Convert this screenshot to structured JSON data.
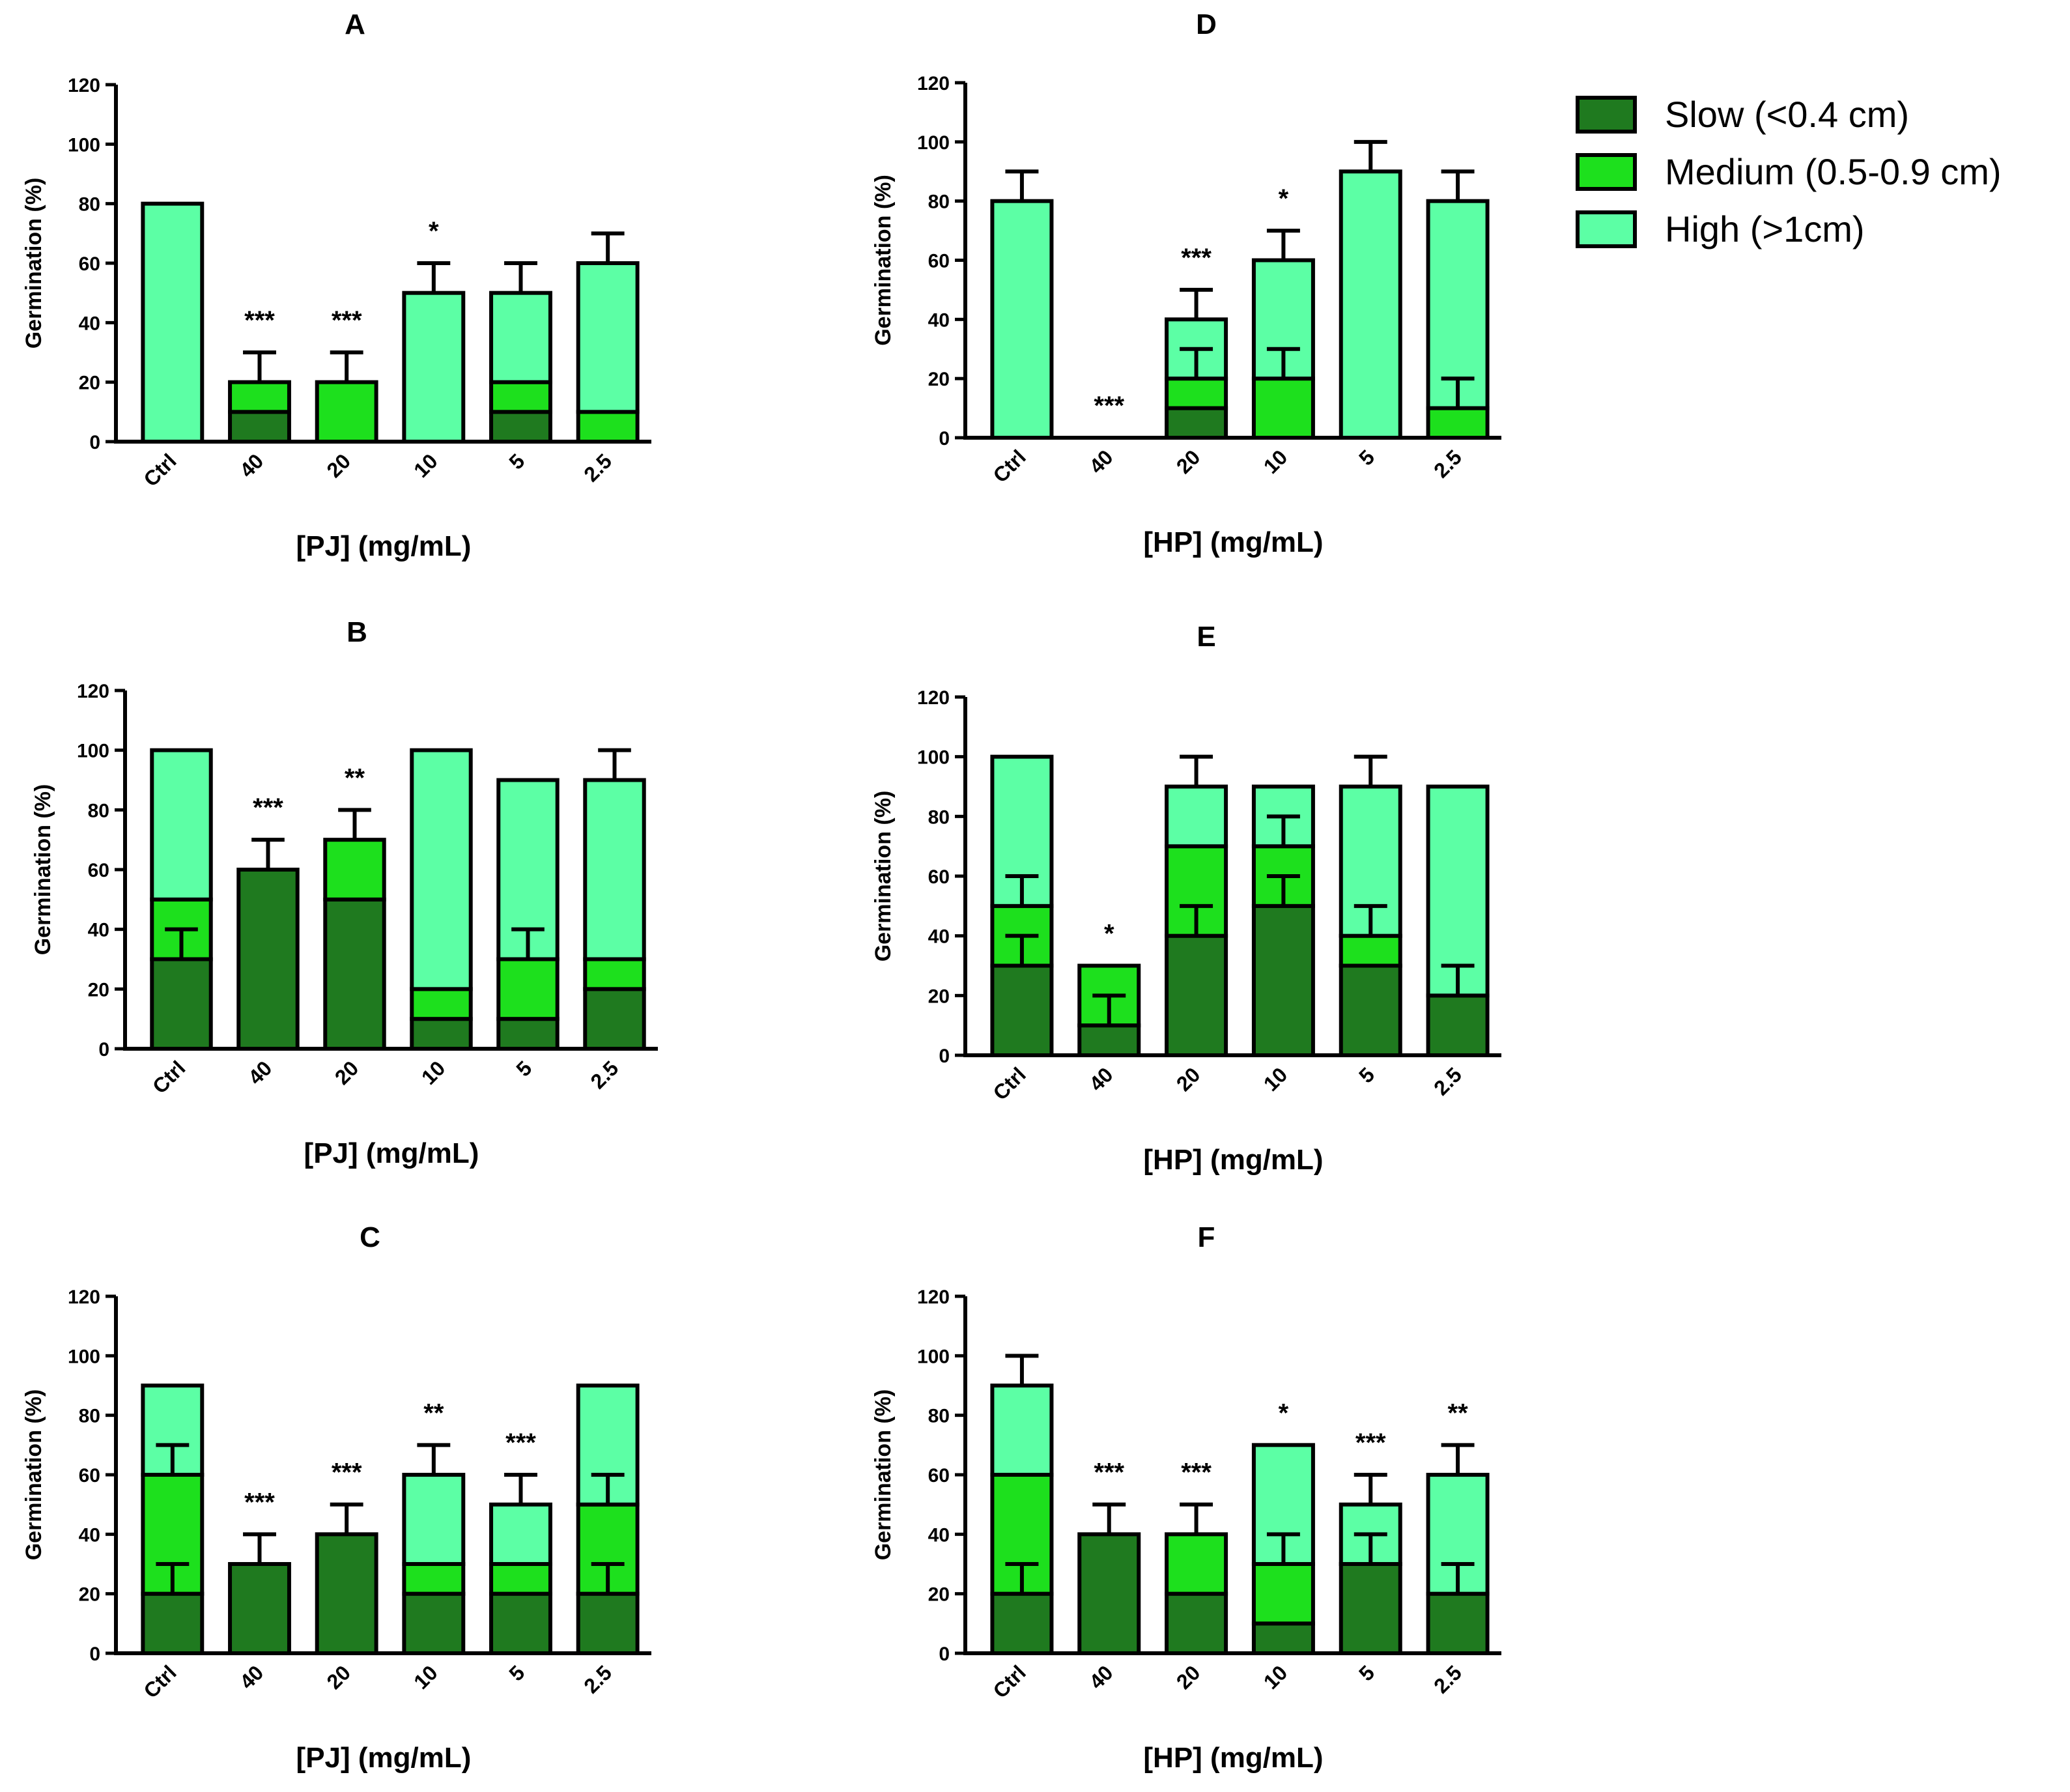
{
  "chart_data": [
    {
      "panel": "A",
      "type": "bar",
      "stacked": true,
      "xlabel": "[PJ] (mg/mL)",
      "ylabel": "Germination (%)",
      "ylim": [
        0,
        120
      ],
      "yticks": [
        "0",
        "20",
        "40",
        "60",
        "80",
        "100",
        "120"
      ],
      "categories": [
        "Ctrl",
        "40",
        "20",
        "10",
        "5",
        "2.5"
      ],
      "series": [
        {
          "name": "Slow (<0.4 cm)",
          "values": [
            0,
            10,
            0,
            0,
            10,
            0
          ],
          "errors": [
            0,
            0,
            0,
            0,
            0,
            0
          ]
        },
        {
          "name": "Medium (0.5-0.9 cm)",
          "values": [
            0,
            10,
            20,
            0,
            10,
            10
          ],
          "errors": [
            0,
            0,
            0,
            0,
            0,
            0
          ]
        },
        {
          "name": "High (>1cm)",
          "values": [
            80,
            0,
            0,
            50,
            30,
            50
          ],
          "errors": [
            0,
            0,
            0,
            0,
            0,
            0
          ]
        }
      ],
      "total_errors": [
        0,
        10,
        10,
        10,
        10,
        10
      ],
      "significance": [
        "",
        "***",
        "***",
        "*",
        "",
        ""
      ]
    },
    {
      "panel": "B",
      "type": "bar",
      "stacked": true,
      "xlabel": "[PJ] (mg/mL)",
      "ylabel": "Germination (%)",
      "ylim": [
        0,
        120
      ],
      "yticks": [
        "0",
        "20",
        "40",
        "60",
        "80",
        "100",
        "120"
      ],
      "categories": [
        "Ctrl",
        "40",
        "20",
        "10",
        "5",
        "2.5"
      ],
      "series": [
        {
          "name": "Slow (<0.4 cm)",
          "values": [
            30,
            60,
            50,
            10,
            10,
            20
          ],
          "errors": [
            10,
            0,
            0,
            0,
            0,
            0
          ]
        },
        {
          "name": "Medium (0.5-0.9 cm)",
          "values": [
            20,
            0,
            20,
            10,
            20,
            10
          ],
          "errors": [
            0,
            0,
            0,
            0,
            10,
            0
          ]
        },
        {
          "name": "High (>1cm)",
          "values": [
            50,
            0,
            0,
            80,
            60,
            60
          ],
          "errors": [
            0,
            0,
            0,
            0,
            0,
            0
          ]
        }
      ],
      "total_errors": [
        0,
        10,
        10,
        0,
        0,
        10
      ],
      "significance": [
        "",
        "***",
        "**",
        "",
        "",
        ""
      ]
    },
    {
      "panel": "C",
      "type": "bar",
      "stacked": true,
      "xlabel": "[PJ] (mg/mL)",
      "ylabel": "Germination (%)",
      "ylim": [
        0,
        120
      ],
      "yticks": [
        "0",
        "20",
        "40",
        "60",
        "80",
        "100",
        "120"
      ],
      "categories": [
        "Ctrl",
        "40",
        "20",
        "10",
        "5",
        "2.5"
      ],
      "series": [
        {
          "name": "Slow (<0.4 cm)",
          "values": [
            20,
            30,
            40,
            20,
            20,
            20
          ],
          "errors": [
            10,
            0,
            0,
            0,
            0,
            10
          ]
        },
        {
          "name": "Medium (0.5-0.9 cm)",
          "values": [
            40,
            0,
            0,
            10,
            10,
            30
          ],
          "errors": [
            10,
            0,
            0,
            0,
            0,
            10
          ]
        },
        {
          "name": "High (>1cm)",
          "values": [
            30,
            0,
            0,
            30,
            20,
            40
          ],
          "errors": [
            0,
            0,
            0,
            0,
            0,
            0
          ]
        }
      ],
      "total_errors": [
        0,
        10,
        10,
        10,
        10,
        0
      ],
      "significance": [
        "",
        "***",
        "***",
        "**",
        "***",
        ""
      ]
    },
    {
      "panel": "D",
      "type": "bar",
      "stacked": true,
      "xlabel": "[HP] (mg/mL)",
      "ylabel": "Germination (%)",
      "ylim": [
        0,
        120
      ],
      "yticks": [
        "0",
        "20",
        "40",
        "60",
        "80",
        "100",
        "120"
      ],
      "categories": [
        "Ctrl",
        "40",
        "20",
        "10",
        "5",
        "2.5"
      ],
      "series": [
        {
          "name": "Slow (<0.4 cm)",
          "values": [
            0,
            0,
            10,
            0,
            0,
            0
          ],
          "errors": [
            0,
            0,
            0,
            0,
            0,
            0
          ]
        },
        {
          "name": "Medium (0.5-0.9 cm)",
          "values": [
            0,
            0,
            10,
            20,
            0,
            10
          ],
          "errors": [
            0,
            0,
            10,
            10,
            0,
            10
          ]
        },
        {
          "name": "High (>1cm)",
          "values": [
            80,
            0,
            20,
            40,
            90,
            70
          ],
          "errors": [
            0,
            0,
            0,
            0,
            0,
            0
          ]
        }
      ],
      "total_errors": [
        10,
        0,
        10,
        10,
        10,
        10
      ],
      "significance": [
        "",
        "***",
        "***",
        "*",
        "",
        ""
      ]
    },
    {
      "panel": "E",
      "type": "bar",
      "stacked": true,
      "xlabel": "[HP] (mg/mL)",
      "ylabel": "Germination (%)",
      "ylim": [
        0,
        120
      ],
      "yticks": [
        "0",
        "20",
        "40",
        "60",
        "80",
        "100",
        "120"
      ],
      "categories": [
        "Ctrl",
        "40",
        "20",
        "10",
        "5",
        "2.5"
      ],
      "series": [
        {
          "name": "Slow (<0.4 cm)",
          "values": [
            30,
            10,
            40,
            50,
            30,
            20
          ],
          "errors": [
            10,
            10,
            10,
            10,
            0,
            10
          ]
        },
        {
          "name": "Medium (0.5-0.9 cm)",
          "values": [
            20,
            20,
            30,
            20,
            10,
            0
          ],
          "errors": [
            10,
            0,
            0,
            10,
            10,
            0
          ]
        },
        {
          "name": "High (>1cm)",
          "values": [
            50,
            0,
            20,
            20,
            50,
            70
          ],
          "errors": [
            0,
            0,
            0,
            0,
            0,
            0
          ]
        }
      ],
      "total_errors": [
        0,
        0,
        10,
        0,
        10,
        0
      ],
      "significance": [
        "",
        "*",
        "",
        "",
        "",
        ""
      ]
    },
    {
      "panel": "F",
      "type": "bar",
      "stacked": true,
      "xlabel": "[HP] (mg/mL)",
      "ylabel": "Germination (%)",
      "ylim": [
        0,
        120
      ],
      "yticks": [
        "0",
        "20",
        "40",
        "60",
        "80",
        "100",
        "120"
      ],
      "categories": [
        "Ctrl",
        "40",
        "20",
        "10",
        "5",
        "2.5"
      ],
      "series": [
        {
          "name": "Slow (<0.4 cm)",
          "values": [
            20,
            40,
            20,
            10,
            30,
            20
          ],
          "errors": [
            10,
            0,
            0,
            0,
            10,
            10
          ]
        },
        {
          "name": "Medium (0.5-0.9 cm)",
          "values": [
            40,
            0,
            20,
            20,
            0,
            0
          ],
          "errors": [
            0,
            0,
            0,
            10,
            0,
            0
          ]
        },
        {
          "name": "High (>1cm)",
          "values": [
            30,
            0,
            0,
            40,
            20,
            40
          ],
          "errors": [
            0,
            0,
            0,
            0,
            0,
            0
          ]
        }
      ],
      "total_errors": [
        10,
        10,
        10,
        0,
        10,
        10
      ],
      "significance": [
        "",
        "***",
        "***",
        "*",
        "***",
        "**"
      ]
    }
  ],
  "legend": {
    "entries": [
      {
        "label": "Slow (<0.4 cm)",
        "color": "#1f7a1f"
      },
      {
        "label": "Medium (0.5-0.9 cm)",
        "color": "#1de01d"
      },
      {
        "label": "High (>1cm)",
        "color": "#5cffa5"
      }
    ]
  },
  "colors": {
    "slow": "#1f7a1f",
    "medium": "#1de01d",
    "high": "#5cffa5",
    "stroke": "#000000"
  }
}
